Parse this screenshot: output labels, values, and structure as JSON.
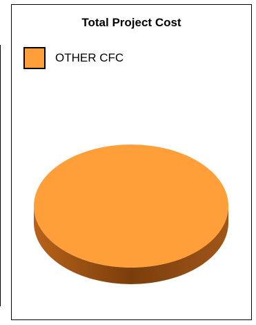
{
  "chart_data": {
    "type": "pie",
    "title": "Total Project Cost",
    "legend_position": "top-left",
    "slices": [
      {
        "label": "OTHER CFC",
        "value": 100,
        "color": "#FF9F3A"
      }
    ]
  },
  "colors": {
    "slice_top": "#FF9F3A",
    "slice_side_dark": "#7A3E0C",
    "slice_side_mid": "#B8621A"
  }
}
